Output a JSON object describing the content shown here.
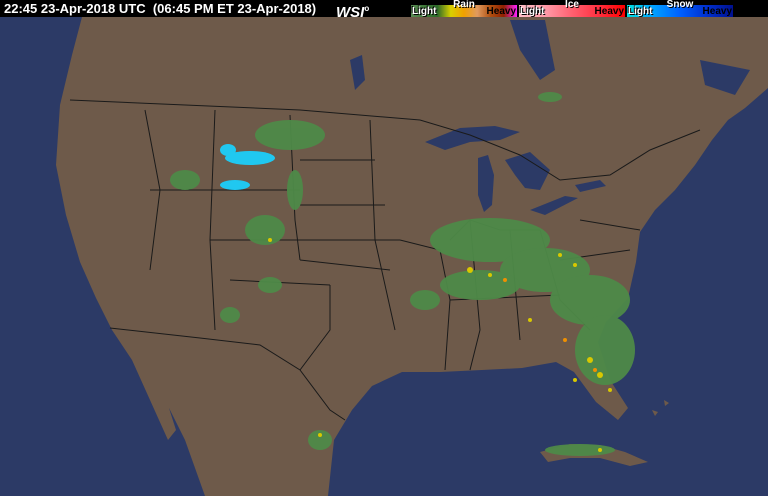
{
  "header": {
    "timestamp": "22:45 23-Apr-2018 UTC  (06:45 PM ET 23-Apr-2018)",
    "logo": "WSI"
  },
  "legend": [
    {
      "type": "Rain",
      "light": "Light",
      "heavy": "Heavy",
      "gradient": [
        "#5a8a55",
        "#3f7a3a",
        "#2d6a2a",
        "#d8d000",
        "#f0a000",
        "#e09a60",
        "#b05010",
        "#902000",
        "#ff20ff"
      ]
    },
    {
      "type": "Ice",
      "light": "Light",
      "heavy": "Heavy",
      "gradient": [
        "#ffc0c8",
        "#ff9aa8",
        "#ff6070",
        "#ff3040",
        "#ff0000"
      ]
    },
    {
      "type": "Snow",
      "light": "Light",
      "heavy": "Heavy",
      "gradient": [
        "#00e0e0",
        "#00a0ff",
        "#0060ff",
        "#0030d0",
        "#001090"
      ]
    }
  ],
  "colors": {
    "ocean": "#2c3a66",
    "land": "#6e5a4a",
    "borders": "#1a1a1a",
    "lakes": "#2c3a66"
  }
}
